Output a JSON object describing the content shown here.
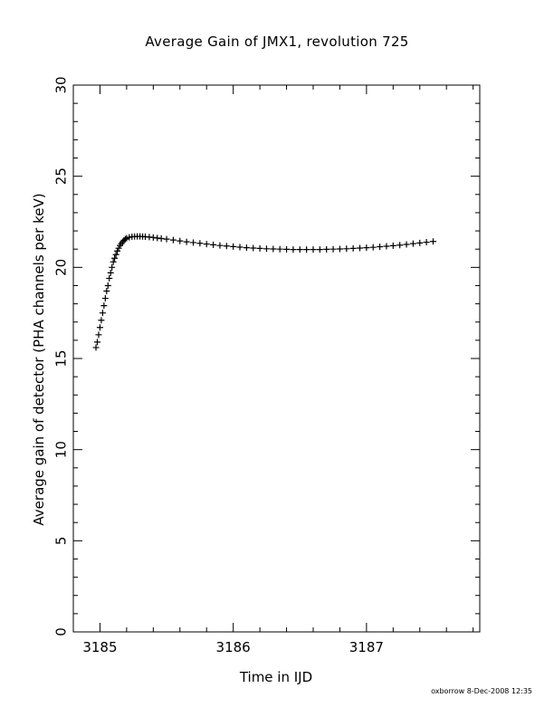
{
  "chart_data": {
    "type": "scatter",
    "title": "Average Gain of JMX1, revolution 725",
    "xlabel": "Time in IJD",
    "ylabel": "Average gain of detector (PHA channels per keV)",
    "xlim": [
      3184.8,
      3187.85
    ],
    "ylim": [
      0,
      30
    ],
    "x_ticks": [
      3185,
      3186,
      3187
    ],
    "y_ticks": [
      0,
      5,
      10,
      15,
      20,
      25,
      30
    ],
    "marker": "plus",
    "series": [
      {
        "points": [
          [
            3184.97,
            15.6
          ],
          [
            3184.98,
            15.9
          ],
          [
            3184.99,
            16.3
          ],
          [
            3185.0,
            16.7
          ],
          [
            3185.01,
            17.1
          ],
          [
            3185.02,
            17.5
          ],
          [
            3185.03,
            17.9
          ],
          [
            3185.04,
            18.3
          ],
          [
            3185.05,
            18.7
          ],
          [
            3185.06,
            19.0
          ],
          [
            3185.07,
            19.4
          ],
          [
            3185.08,
            19.7
          ],
          [
            3185.09,
            20.0
          ],
          [
            3185.1,
            20.3
          ],
          [
            3185.11,
            20.5
          ],
          [
            3185.12,
            20.7
          ],
          [
            3185.13,
            20.9
          ],
          [
            3185.14,
            21.05
          ],
          [
            3185.15,
            21.2
          ],
          [
            3185.16,
            21.3
          ],
          [
            3185.17,
            21.4
          ],
          [
            3185.18,
            21.48
          ],
          [
            3185.19,
            21.55
          ],
          [
            3185.2,
            21.6
          ],
          [
            3185.22,
            21.65
          ],
          [
            3185.24,
            21.68
          ],
          [
            3185.26,
            21.69
          ],
          [
            3185.28,
            21.7
          ],
          [
            3185.3,
            21.7
          ],
          [
            3185.32,
            21.69
          ],
          [
            3185.34,
            21.68
          ],
          [
            3185.37,
            21.66
          ],
          [
            3185.4,
            21.64
          ],
          [
            3185.43,
            21.61
          ],
          [
            3185.46,
            21.58
          ],
          [
            3185.5,
            21.55
          ],
          [
            3185.55,
            21.5
          ],
          [
            3185.6,
            21.45
          ],
          [
            3185.65,
            21.4
          ],
          [
            3185.7,
            21.36
          ],
          [
            3185.75,
            21.32
          ],
          [
            3185.8,
            21.28
          ],
          [
            3185.85,
            21.24
          ],
          [
            3185.9,
            21.2
          ],
          [
            3185.95,
            21.17
          ],
          [
            3186.0,
            21.14
          ],
          [
            3186.05,
            21.11
          ],
          [
            3186.1,
            21.08
          ],
          [
            3186.15,
            21.06
          ],
          [
            3186.2,
            21.04
          ],
          [
            3186.25,
            21.02
          ],
          [
            3186.3,
            21.01
          ],
          [
            3186.35,
            21.0
          ],
          [
            3186.4,
            20.99
          ],
          [
            3186.45,
            20.98
          ],
          [
            3186.5,
            20.98
          ],
          [
            3186.55,
            20.98
          ],
          [
            3186.6,
            20.98
          ],
          [
            3186.65,
            20.98
          ],
          [
            3186.7,
            20.99
          ],
          [
            3186.75,
            21.0
          ],
          [
            3186.8,
            21.01
          ],
          [
            3186.85,
            21.02
          ],
          [
            3186.9,
            21.04
          ],
          [
            3186.95,
            21.06
          ],
          [
            3187.0,
            21.08
          ],
          [
            3187.05,
            21.1
          ],
          [
            3187.1,
            21.13
          ],
          [
            3187.15,
            21.16
          ],
          [
            3187.2,
            21.19
          ],
          [
            3187.25,
            21.22
          ],
          [
            3187.3,
            21.26
          ],
          [
            3187.35,
            21.3
          ],
          [
            3187.4,
            21.34
          ],
          [
            3187.45,
            21.38
          ],
          [
            3187.5,
            21.42
          ]
        ]
      }
    ]
  },
  "footer": "oxborrow  8-Dec-2008 12:35"
}
